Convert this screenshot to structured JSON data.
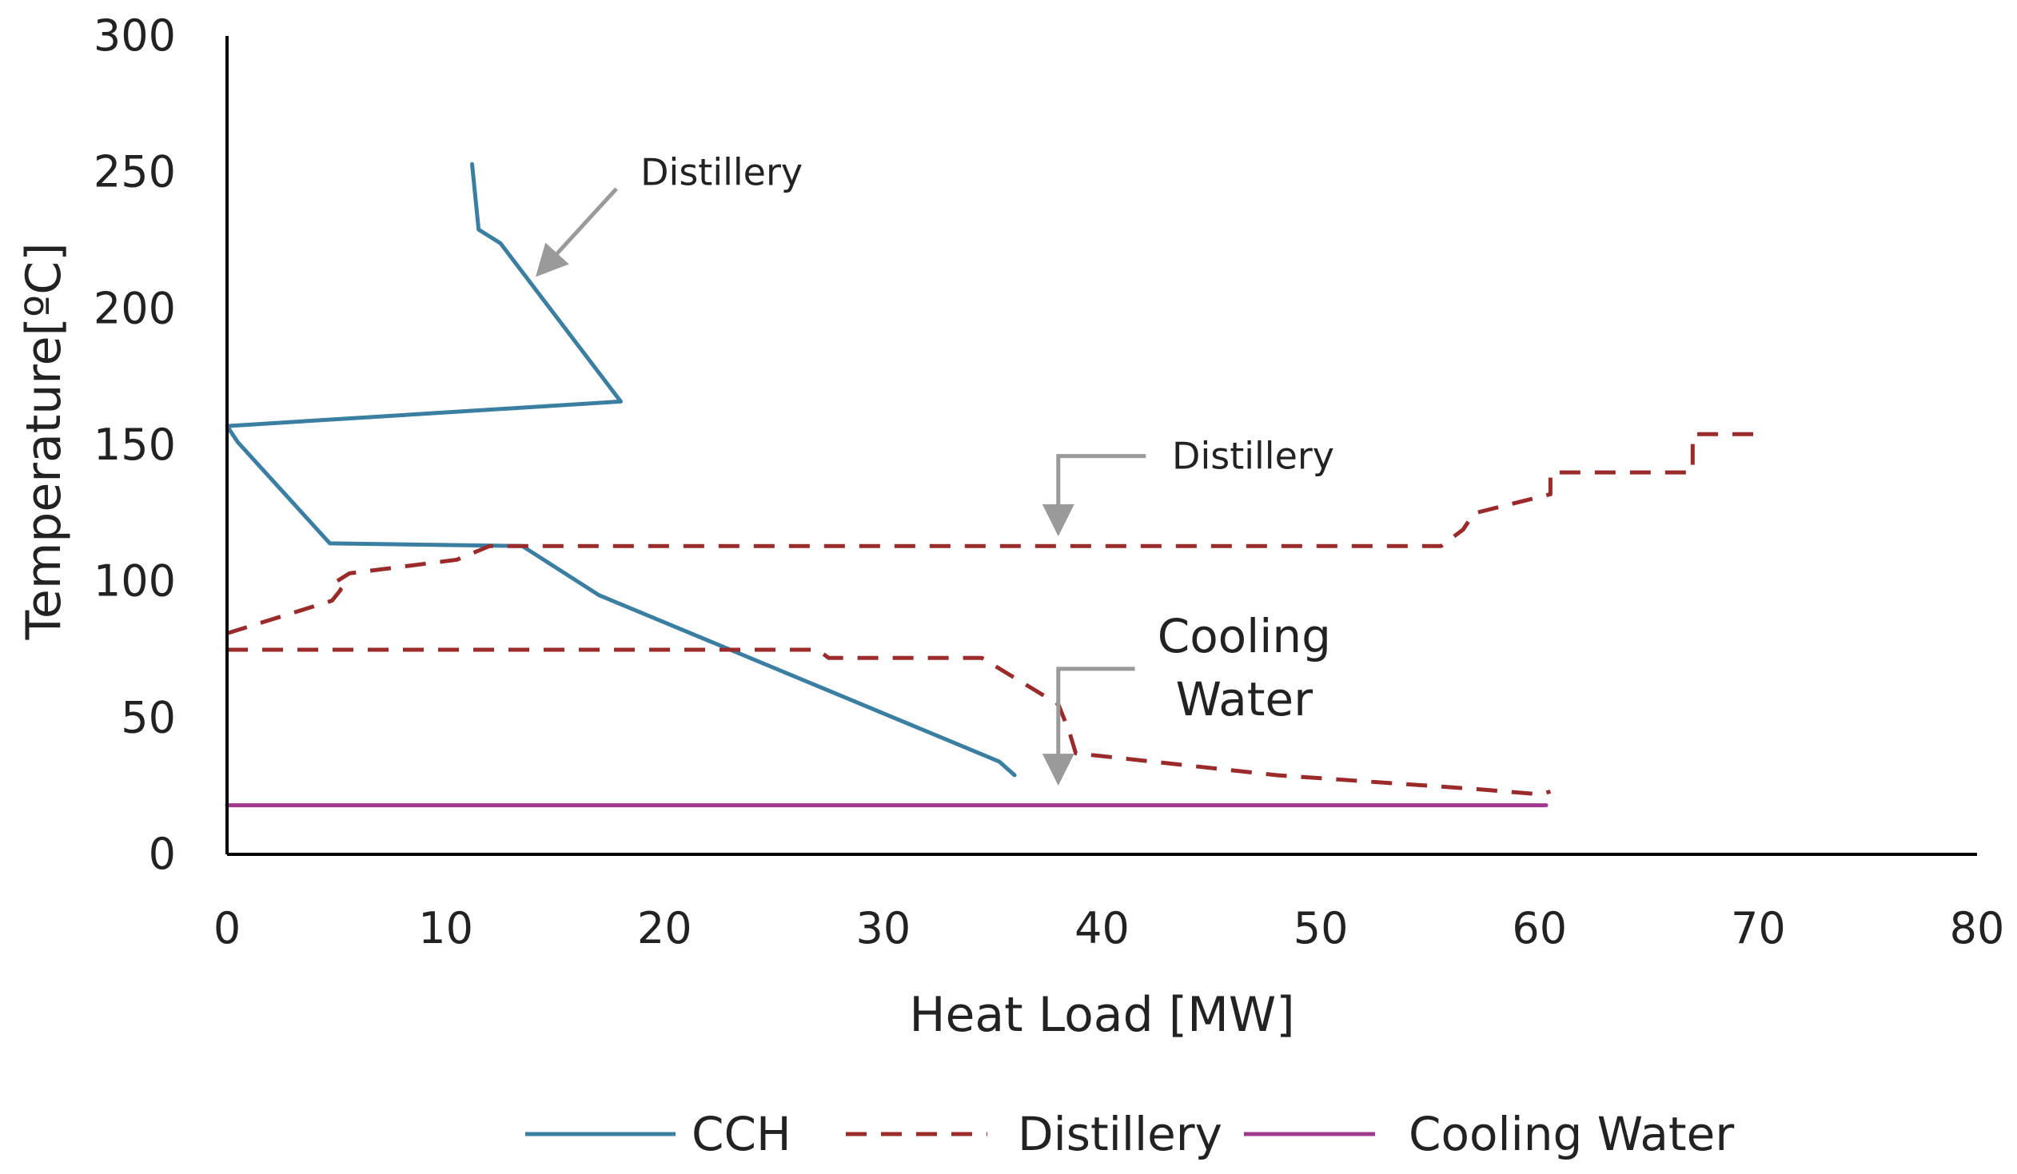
{
  "chart_data": {
    "type": "line",
    "title": "",
    "xlabel": "Heat Load [MW]",
    "ylabel": "Temperature[ºC]",
    "xlim": [
      0,
      80
    ],
    "ylim": [
      0,
      300
    ],
    "x_ticks": [
      0,
      10,
      20,
      30,
      40,
      50,
      60,
      70,
      80
    ],
    "y_ticks": [
      0,
      50,
      100,
      150,
      200,
      250,
      300
    ],
    "grid": false,
    "legend_position": "bottom",
    "series": [
      {
        "name": "CCH",
        "color": "#3a7ea1",
        "style": "solid",
        "points": [
          [
            36.0,
            29
          ],
          [
            35.3,
            34
          ],
          [
            17.0,
            95
          ],
          [
            13.5,
            113
          ],
          [
            4.7,
            114
          ],
          [
            0.5,
            151
          ],
          [
            0,
            157
          ],
          [
            18.0,
            166
          ],
          [
            12.5,
            224
          ],
          [
            11.5,
            229
          ],
          [
            11.2,
            253
          ]
        ]
      },
      {
        "name": "Distillery",
        "color": "#9b2a2a",
        "style": "dashed",
        "segments": [
          [
            [
              0,
              81
            ],
            [
              4.8,
              93
            ],
            [
              5.2,
              97
            ],
            [
              4.8,
              99
            ],
            [
              5.6,
              103
            ],
            [
              10.5,
              108
            ],
            [
              12.0,
              113
            ],
            [
              55.5,
              113
            ],
            [
              56.5,
              119
            ],
            [
              57.0,
              125
            ],
            [
              60.5,
              132
            ],
            [
              60.5,
              140
            ],
            [
              67.0,
              140
            ],
            [
              67.0,
              154
            ],
            [
              70.0,
              154
            ]
          ],
          [
            [
              0,
              75
            ],
            [
              27.0,
              75
            ],
            [
              27.5,
              72
            ],
            [
              34.5,
              72
            ],
            [
              38.0,
              55
            ],
            [
              38.5,
              45
            ],
            [
              38.8,
              37
            ],
            [
              40.0,
              36
            ],
            [
              48.0,
              29
            ],
            [
              57.0,
              24
            ],
            [
              60.0,
              22
            ],
            [
              60.5,
              23
            ]
          ]
        ]
      },
      {
        "name": "Cooling Water",
        "color": "#a03a8f",
        "style": "solid",
        "points": [
          [
            0,
            18
          ],
          [
            60.3,
            18
          ]
        ]
      }
    ],
    "annotations": [
      {
        "text": "Distillery",
        "points_to": [
          14.5,
          215
        ]
      },
      {
        "text": "Distillery",
        "points_to": [
          38.0,
          116
        ]
      },
      {
        "text_lines": [
          "Cooling",
          "Water"
        ],
        "points_to": [
          38.0,
          24
        ]
      }
    ]
  }
}
